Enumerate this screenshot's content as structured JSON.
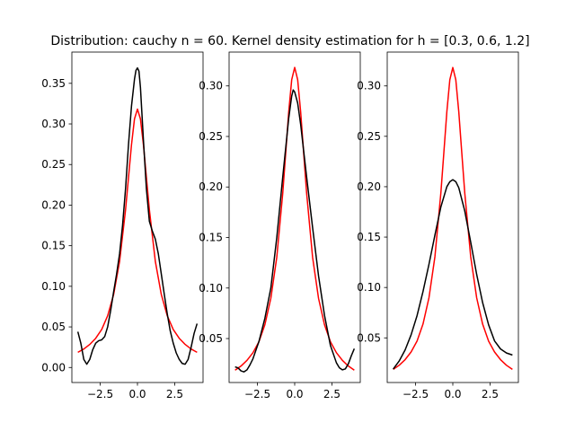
{
  "title": "Distribution: cauchy n = 60. Kernel density estimation for h = [0.3, 0.6, 1.2]",
  "colors": {
    "true_density": "#ff0000",
    "kde": "#000000",
    "axes": "#000000",
    "background": "#ffffff"
  },
  "chart_data": [
    {
      "type": "line",
      "xlim": [
        -4.4,
        4.4
      ],
      "ylim": [
        -0.0185,
        0.3885
      ],
      "xticks": [
        -2.5,
        0.0,
        2.5
      ],
      "xtick_labels": [
        "−2.5",
        "0.0",
        "2.5"
      ],
      "yticks": [
        0.0,
        0.05,
        0.1,
        0.15,
        0.2,
        0.25,
        0.3,
        0.35
      ],
      "ytick_labels": [
        "0.00",
        "0.05",
        "0.10",
        "0.15",
        "0.20",
        "0.25",
        "0.30",
        "0.35"
      ],
      "grid": false,
      "series": [
        {
          "color": "#ff0000",
          "x": [
            -4.0,
            -3.6,
            -3.2,
            -2.8,
            -2.4,
            -2.0,
            -1.6,
            -1.2,
            -0.8,
            -0.6,
            -0.4,
            -0.2,
            0.0,
            0.2,
            0.4,
            0.6,
            0.8,
            1.2,
            1.6,
            2.0,
            2.4,
            2.8,
            3.2,
            3.6,
            4.0
          ],
          "y": [
            0.0187,
            0.0228,
            0.0284,
            0.036,
            0.0468,
            0.0637,
            0.0898,
            0.1306,
            0.1941,
            0.2341,
            0.2744,
            0.3061,
            0.3183,
            0.3061,
            0.2744,
            0.2341,
            0.1941,
            0.1306,
            0.0898,
            0.0637,
            0.0468,
            0.036,
            0.0284,
            0.0228,
            0.0187
          ]
        },
        {
          "color": "#000000",
          "x": [
            -4.0,
            -3.8,
            -3.6,
            -3.4,
            -3.2,
            -3.0,
            -2.8,
            -2.6,
            -2.4,
            -2.2,
            -2.0,
            -1.8,
            -1.6,
            -1.4,
            -1.2,
            -1.0,
            -0.8,
            -0.6,
            -0.4,
            -0.2,
            -0.1,
            0.0,
            0.1,
            0.2,
            0.4,
            0.6,
            0.8,
            1.0,
            1.2,
            1.4,
            1.6,
            1.8,
            2.0,
            2.2,
            2.4,
            2.6,
            2.8,
            3.0,
            3.2,
            3.4,
            3.6,
            3.8,
            4.0
          ],
          "y": [
            0.044,
            0.03,
            0.01,
            0.004,
            0.01,
            0.022,
            0.03,
            0.033,
            0.034,
            0.038,
            0.05,
            0.07,
            0.093,
            0.115,
            0.14,
            0.175,
            0.22,
            0.275,
            0.322,
            0.355,
            0.366,
            0.369,
            0.365,
            0.345,
            0.28,
            0.22,
            0.18,
            0.168,
            0.158,
            0.14,
            0.115,
            0.09,
            0.066,
            0.045,
            0.03,
            0.018,
            0.01,
            0.005,
            0.004,
            0.01,
            0.025,
            0.042,
            0.054
          ]
        }
      ]
    },
    {
      "type": "line",
      "xlim": [
        -4.4,
        4.4
      ],
      "ylim": [
        0.0065,
        0.3335
      ],
      "xticks": [
        -2.5,
        0.0,
        2.5
      ],
      "xtick_labels": [
        "−2.5",
        "0.0",
        "2.5"
      ],
      "yticks": [
        0.05,
        0.1,
        0.15,
        0.2,
        0.25,
        0.3
      ],
      "ytick_labels": [
        "0.05",
        "0.10",
        "0.15",
        "0.20",
        "0.25",
        "0.30"
      ],
      "grid": false,
      "series": [
        {
          "color": "#ff0000",
          "x": [
            -4.0,
            -3.6,
            -3.2,
            -2.8,
            -2.4,
            -2.0,
            -1.6,
            -1.2,
            -0.8,
            -0.6,
            -0.4,
            -0.2,
            0.0,
            0.2,
            0.4,
            0.6,
            0.8,
            1.2,
            1.6,
            2.0,
            2.4,
            2.8,
            3.2,
            3.6,
            4.0
          ],
          "y": [
            0.0187,
            0.0228,
            0.0284,
            0.036,
            0.0468,
            0.0637,
            0.0898,
            0.1306,
            0.1941,
            0.2341,
            0.2744,
            0.3061,
            0.3183,
            0.3061,
            0.2744,
            0.2341,
            0.1941,
            0.1306,
            0.0898,
            0.0637,
            0.0468,
            0.036,
            0.0284,
            0.0228,
            0.0187
          ]
        },
        {
          "color": "#000000",
          "x": [
            -4.0,
            -3.8,
            -3.6,
            -3.4,
            -3.2,
            -3.0,
            -2.8,
            -2.4,
            -2.0,
            -1.6,
            -1.2,
            -0.8,
            -0.4,
            -0.2,
            -0.1,
            0.0,
            0.2,
            0.4,
            0.8,
            1.2,
            1.6,
            2.0,
            2.4,
            2.8,
            3.0,
            3.2,
            3.4,
            3.6,
            3.8,
            4.0
          ],
          "y": [
            0.022,
            0.021,
            0.018,
            0.017,
            0.019,
            0.024,
            0.03,
            0.047,
            0.07,
            0.1,
            0.15,
            0.21,
            0.268,
            0.29,
            0.296,
            0.294,
            0.283,
            0.262,
            0.21,
            0.16,
            0.112,
            0.073,
            0.043,
            0.026,
            0.021,
            0.019,
            0.02,
            0.025,
            0.033,
            0.04
          ]
        }
      ]
    },
    {
      "type": "line",
      "xlim": [
        -4.4,
        4.4
      ],
      "ylim": [
        0.0057,
        0.3336
      ],
      "xticks": [
        -2.5,
        0.0,
        2.5
      ],
      "xtick_labels": [
        "−2.5",
        "0.0",
        "2.5"
      ],
      "yticks": [
        0.05,
        0.1,
        0.15,
        0.2,
        0.25,
        0.3
      ],
      "ytick_labels": [
        "0.05",
        "0.10",
        "0.15",
        "0.20",
        "0.25",
        "0.30"
      ],
      "grid": false,
      "series": [
        {
          "color": "#ff0000",
          "x": [
            -4.0,
            -3.6,
            -3.2,
            -2.8,
            -2.4,
            -2.0,
            -1.6,
            -1.2,
            -0.8,
            -0.6,
            -0.4,
            -0.2,
            0.0,
            0.2,
            0.4,
            0.6,
            0.8,
            1.2,
            1.6,
            2.0,
            2.4,
            2.8,
            3.2,
            3.6,
            4.0
          ],
          "y": [
            0.0187,
            0.0228,
            0.0284,
            0.036,
            0.0468,
            0.0637,
            0.0898,
            0.1306,
            0.1941,
            0.2341,
            0.2744,
            0.3061,
            0.3183,
            0.3061,
            0.2744,
            0.2341,
            0.1941,
            0.1306,
            0.0898,
            0.0637,
            0.0468,
            0.036,
            0.0284,
            0.0228,
            0.0187
          ]
        },
        {
          "color": "#000000",
          "x": [
            -4.0,
            -3.6,
            -3.2,
            -2.8,
            -2.4,
            -2.0,
            -1.6,
            -1.2,
            -0.8,
            -0.4,
            -0.2,
            0.0,
            0.2,
            0.4,
            0.8,
            1.2,
            1.6,
            2.0,
            2.4,
            2.8,
            3.2,
            3.6,
            4.0
          ],
          "y": [
            0.019,
            0.027,
            0.038,
            0.053,
            0.072,
            0.096,
            0.123,
            0.152,
            0.18,
            0.2,
            0.205,
            0.207,
            0.205,
            0.199,
            0.176,
            0.145,
            0.113,
            0.085,
            0.063,
            0.047,
            0.039,
            0.035,
            0.033
          ]
        }
      ]
    }
  ]
}
